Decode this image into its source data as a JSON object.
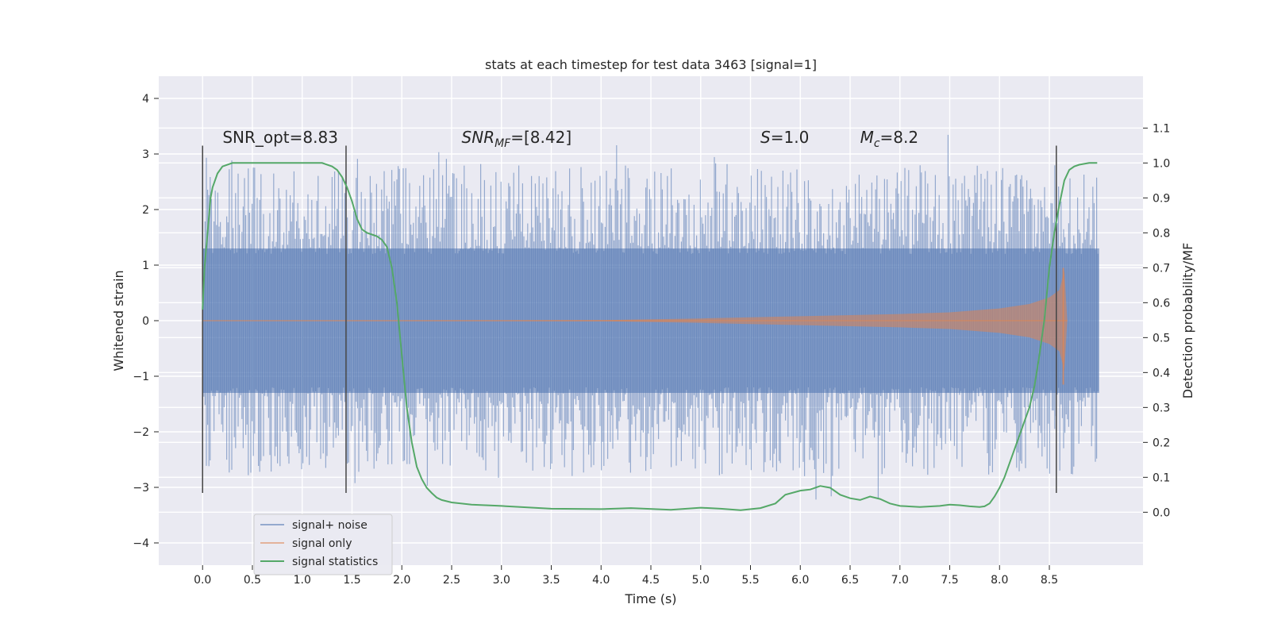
{
  "chart_data": {
    "type": "line",
    "title": "stats at each timestep for test data 3463 [signal=1]",
    "xlabel": "Time (s)",
    "ylabel": "Whitened strain",
    "y2label": "Detection probability/MF",
    "xlim": [
      -0.44,
      9.44
    ],
    "ylim": [
      -4.4,
      4.4
    ],
    "y2lim": [
      -0.1515,
      1.2485
    ],
    "x_ticks": [
      0.0,
      0.5,
      1.0,
      1.5,
      2.0,
      2.5,
      3.0,
      3.5,
      4.0,
      4.5,
      5.0,
      5.5,
      6.0,
      6.5,
      7.0,
      7.5,
      8.0,
      8.5
    ],
    "x_tick_labels": [
      "0.0",
      "0.5",
      "1.0",
      "1.5",
      "2.0",
      "2.5",
      "3.0",
      "3.5",
      "4.0",
      "4.5",
      "5.0",
      "5.5",
      "6.0",
      "6.5",
      "7.0",
      "7.5",
      "8.0",
      "8.5"
    ],
    "y_ticks": [
      -4,
      -3,
      -2,
      -1,
      0,
      1,
      2,
      3,
      4
    ],
    "y_tick_labels": [
      "−4",
      "−3",
      "−2",
      "−1",
      "0",
      "1",
      "2",
      "3",
      "4"
    ],
    "y2_ticks": [
      0.0,
      0.1,
      0.2,
      0.3,
      0.4,
      0.5,
      0.6,
      0.7,
      0.8,
      0.9,
      1.0,
      1.1
    ],
    "y2_tick_labels": [
      "0.0",
      "0.1",
      "0.2",
      "0.3",
      "0.4",
      "0.5",
      "0.6",
      "0.7",
      "0.8",
      "0.9",
      "1.0",
      "1.1"
    ],
    "grid": true,
    "legend_position": "lower-left",
    "annotations": [
      {
        "text": "SNR_opt=8.83",
        "x": 0.2,
        "y": 3.2
      },
      {
        "text": "SNR_MF=[8.42]",
        "x": 2.6,
        "y": 3.2
      },
      {
        "text": "S=1.0",
        "x": 5.6,
        "y": 3.2
      },
      {
        "text": "M_c=8.2",
        "x": 6.6,
        "y": 3.2
      }
    ],
    "vertical_markers": [
      {
        "x": 0.0,
        "ymin": -3.1,
        "ymax": 3.15
      },
      {
        "x": 1.44,
        "ymin": -3.1,
        "ymax": 3.15
      },
      {
        "x": 8.57,
        "ymin": -3.1,
        "ymax": 3.15
      }
    ],
    "series": [
      {
        "name": "signal+ noise",
        "color": "#4c72b0",
        "x_range": [
          0.0,
          9.0
        ],
        "band": 1.3,
        "max_excursion": 4.05
      },
      {
        "name": "signal only",
        "color": "#dd8452",
        "x_range": [
          0.0,
          8.68
        ],
        "x": [
          0.0,
          4.0,
          5.0,
          6.0,
          7.0,
          7.5,
          8.0,
          8.3,
          8.5,
          8.6,
          8.65,
          8.68
        ],
        "envelope": [
          0.0,
          0.01,
          0.04,
          0.08,
          0.12,
          0.15,
          0.22,
          0.3,
          0.42,
          0.55,
          0.9,
          0.0
        ]
      },
      {
        "name": "signal statistics",
        "color": "#55a868",
        "axis": "right",
        "x": [
          0.0,
          0.02,
          0.05,
          0.08,
          0.1,
          0.15,
          0.2,
          0.3,
          0.5,
          0.8,
          1.0,
          1.2,
          1.3,
          1.35,
          1.4,
          1.45,
          1.5,
          1.55,
          1.6,
          1.65,
          1.7,
          1.75,
          1.8,
          1.85,
          1.9,
          1.95,
          2.0,
          2.05,
          2.1,
          2.15,
          2.2,
          2.25,
          2.3,
          2.35,
          2.4,
          2.5,
          2.7,
          3.0,
          3.5,
          4.0,
          4.3,
          4.7,
          5.0,
          5.2,
          5.4,
          5.6,
          5.75,
          5.85,
          6.0,
          6.1,
          6.2,
          6.3,
          6.4,
          6.5,
          6.6,
          6.7,
          6.8,
          6.9,
          7.0,
          7.2,
          7.4,
          7.5,
          7.6,
          7.7,
          7.8,
          7.85,
          7.9,
          7.95,
          8.0,
          8.05,
          8.1,
          8.15,
          8.2,
          8.25,
          8.3,
          8.35,
          8.4,
          8.45,
          8.5,
          8.55,
          8.6,
          8.65,
          8.7,
          8.75,
          8.8,
          8.9,
          8.98
        ],
        "values": [
          0.58,
          0.7,
          0.8,
          0.9,
          0.93,
          0.97,
          0.99,
          1.0,
          1.0,
          1.0,
          1.0,
          1.0,
          0.99,
          0.98,
          0.96,
          0.93,
          0.89,
          0.84,
          0.81,
          0.8,
          0.795,
          0.79,
          0.78,
          0.76,
          0.7,
          0.6,
          0.45,
          0.3,
          0.2,
          0.13,
          0.095,
          0.07,
          0.055,
          0.042,
          0.035,
          0.028,
          0.022,
          0.018,
          0.01,
          0.009,
          0.012,
          0.007,
          0.013,
          0.01,
          0.006,
          0.012,
          0.025,
          0.05,
          0.062,
          0.065,
          0.075,
          0.07,
          0.05,
          0.04,
          0.035,
          0.045,
          0.038,
          0.025,
          0.018,
          0.015,
          0.018,
          0.022,
          0.02,
          0.017,
          0.015,
          0.017,
          0.025,
          0.045,
          0.07,
          0.1,
          0.14,
          0.18,
          0.22,
          0.26,
          0.3,
          0.36,
          0.45,
          0.55,
          0.7,
          0.8,
          0.88,
          0.95,
          0.98,
          0.99,
          0.995,
          1.0,
          1.0
        ]
      }
    ]
  }
}
